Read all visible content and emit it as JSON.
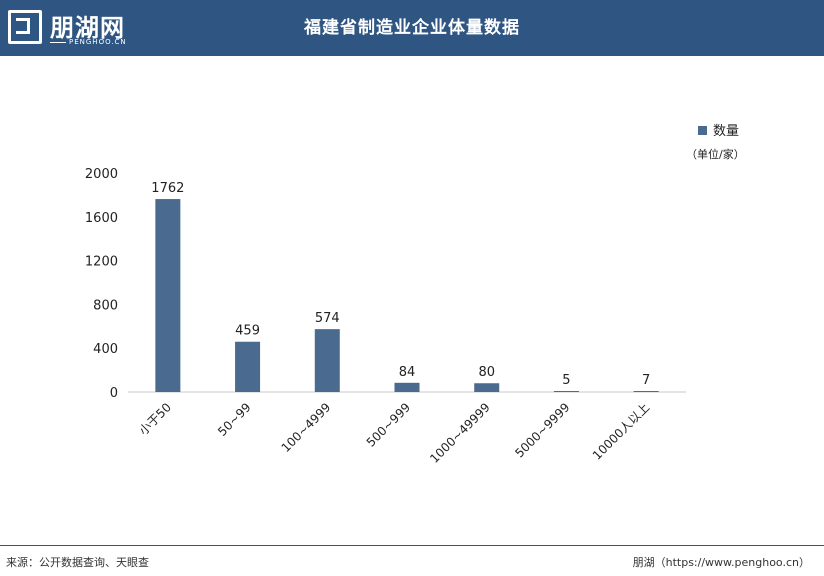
{
  "header": {
    "logo_cn": "朋湖网",
    "logo_en": "PENGHOO.CN",
    "title": "福建省制造业企业体量数据"
  },
  "legend": {
    "series_name": "数量",
    "unit": "（单位/家）"
  },
  "footer": {
    "source": "来源：公开数据查询、天眼查",
    "credit": "朋湖（https://www.penghoo.cn）"
  },
  "colors": {
    "header_bg": "#2f5683",
    "bar": "#4a6a8f"
  },
  "chart_data": {
    "type": "bar",
    "categories": [
      "小于50",
      "50~99",
      "100~4999",
      "500~999",
      "1000~49999",
      "5000~9999",
      "10000人以上"
    ],
    "series": [
      {
        "name": "数量",
        "values": [
          1762,
          459,
          574,
          84,
          80,
          5,
          7
        ]
      }
    ],
    "yticks": [
      0,
      400,
      800,
      1200,
      1600,
      2000
    ],
    "ylim": [
      0,
      2000
    ],
    "grid": false,
    "legend_position": "top-right",
    "data_labels": true
  }
}
